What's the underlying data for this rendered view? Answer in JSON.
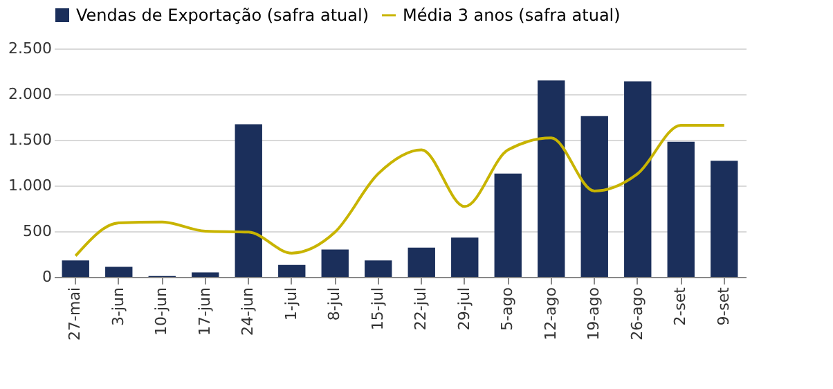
{
  "chart_data": {
    "type": "bar",
    "categories": [
      "27-mai",
      "3-jun",
      "10-jun",
      "17-jun",
      "24-jun",
      "1-jul",
      "8-jul",
      "15-jul",
      "22-jul",
      "29-jul",
      "5-ago",
      "12-ago",
      "19-ago",
      "26-ago",
      "2-set",
      "9-set"
    ],
    "series": [
      {
        "name": "Vendas de Exportação (safra atual)",
        "color": "#1b2f5b",
        "values": [
          180,
          110,
          10,
          50,
          1670,
          130,
          300,
          180,
          320,
          430,
          1130,
          2150,
          1760,
          2140,
          1480,
          1270
        ]
      },
      {
        "name": "Média 3 anos (safra atual)",
        "type": "line",
        "color": "#c8b400",
        "values": [
          230,
          590,
          600,
          500,
          490,
          260,
          490,
          1130,
          1390,
          770,
          1390,
          1520,
          940,
          1130,
          1660,
          1660
        ]
      }
    ],
    "ylim": [
      0,
      2500
    ],
    "yticks": [
      0,
      500,
      {
        "value": 1000,
        "label": "1.000"
      },
      {
        "value": 1500,
        "label": "1.500"
      },
      {
        "value": 2000,
        "label": "2.000"
      },
      {
        "value": 2500,
        "label": "2.500"
      }
    ],
    "grid": "y",
    "legend": "top",
    "marker": "none",
    "line_style": "solid"
  }
}
